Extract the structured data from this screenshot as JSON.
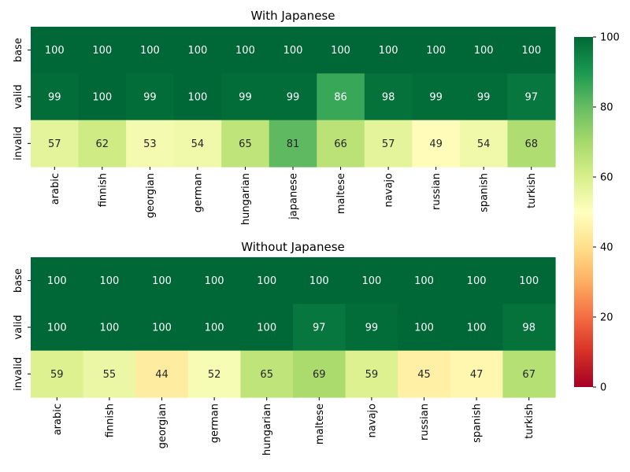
{
  "chart_data": [
    {
      "type": "heatmap",
      "title": "With Japanese",
      "rows": [
        "base",
        "valid",
        "invalid"
      ],
      "columns": [
        "arabic",
        "finnish",
        "georgian",
        "german",
        "hungarian",
        "japanese",
        "maltese",
        "navajo",
        "russian",
        "spanish",
        "turkish"
      ],
      "values": [
        [
          100,
          100,
          100,
          100,
          100,
          100,
          100,
          100,
          100,
          100,
          100
        ],
        [
          99,
          100,
          99,
          100,
          99,
          99,
          86,
          98,
          99,
          99,
          97
        ],
        [
          57,
          62,
          53,
          54,
          65,
          81,
          66,
          57,
          49,
          54,
          68
        ]
      ]
    },
    {
      "type": "heatmap",
      "title": "Without Japanese",
      "rows": [
        "base",
        "valid",
        "invalid"
      ],
      "columns": [
        "arabic",
        "finnish",
        "georgian",
        "german",
        "hungarian",
        "maltese",
        "navajo",
        "russian",
        "spanish",
        "turkish"
      ],
      "values": [
        [
          100,
          100,
          100,
          100,
          100,
          100,
          100,
          100,
          100,
          100
        ],
        [
          100,
          100,
          100,
          100,
          100,
          97,
          99,
          100,
          100,
          98
        ],
        [
          59,
          55,
          44,
          52,
          65,
          69,
          59,
          45,
          47,
          67
        ]
      ]
    }
  ],
  "colorbar": {
    "colormap": "RdYlGn",
    "range": [
      0,
      100
    ],
    "ticks": [
      "0",
      "20",
      "40",
      "60",
      "80",
      "100"
    ]
  }
}
